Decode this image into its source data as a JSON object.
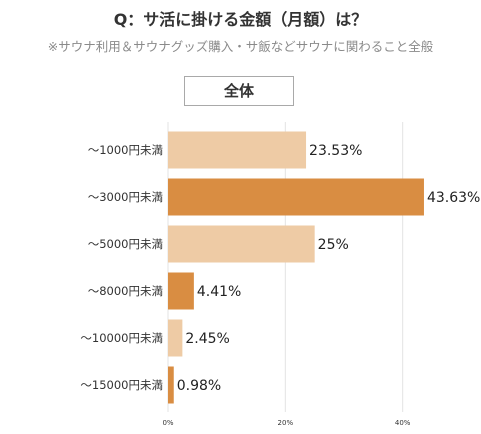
{
  "header": {
    "title": "Q：サ活に掛ける金額（月額）は？",
    "subtitle": "※サウナ利用＆サウナグッズ購入・サ飯などサウナに関わること全般"
  },
  "badge": {
    "label": "全体"
  },
  "chart_data": {
    "type": "bar",
    "orientation": "horizontal",
    "categories": [
      "～1000円未満",
      "～3000円未満",
      "～5000円未満",
      "～8000円未満",
      "～10000円未満",
      "～15000円未満"
    ],
    "values": [
      23.53,
      43.63,
      25,
      4.41,
      2.45,
      0.98
    ],
    "value_labels": [
      "23.53%",
      "43.63%",
      "25%",
      "4.41%",
      "2.45%",
      "0.98%"
    ],
    "highlighted": [
      false,
      true,
      false,
      true,
      false,
      true
    ],
    "xlim": [
      0,
      45
    ],
    "xticks": [
      0,
      20,
      40
    ],
    "xtick_labels": [
      "0%",
      "20%",
      "40%"
    ],
    "grid": true,
    "colors": {
      "bar_light": "#EECBA5",
      "bar_dark": "#D98D42",
      "grid": "#E3E3E3",
      "text": "#222222",
      "axis_text": "#333333"
    }
  }
}
